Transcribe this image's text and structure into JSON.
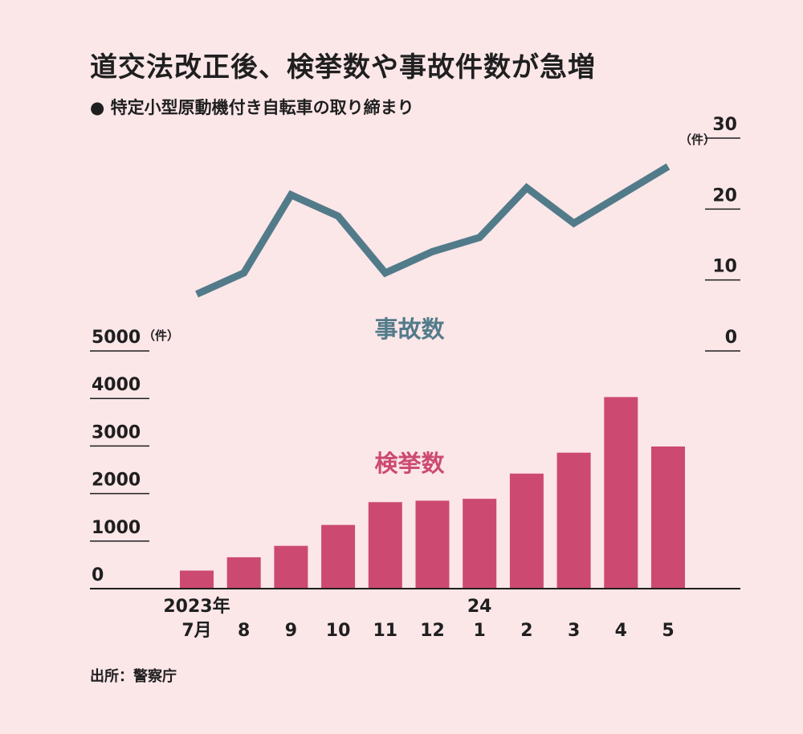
{
  "title": "道交法改正後、検挙数や事故件数が急増",
  "subtitle": "● 特定小型原動機付き自転車の取り締まり",
  "source": "出所：警察庁",
  "colors": {
    "background": "#fbe6e8",
    "accidents_line": "#527b8a",
    "enforcement_bars": "#cc4a72"
  },
  "chart_data": {
    "type": "bar+line",
    "categories": [
      "7月",
      "8",
      "9",
      "10",
      "11",
      "12",
      "1",
      "2",
      "3",
      "4",
      "5"
    ],
    "year_labels": [
      "2023年",
      "",
      "",
      "",
      "",
      "",
      "24",
      "",
      "",
      "",
      ""
    ],
    "series": [
      {
        "name": "検挙数",
        "type": "bar",
        "axis": "left",
        "values": [
          380,
          660,
          900,
          1340,
          1820,
          1850,
          1890,
          2420,
          2860,
          4030,
          2990
        ]
      },
      {
        "name": "事故数",
        "type": "line",
        "axis": "right",
        "values": [
          8,
          11,
          22,
          19,
          11,
          14,
          16,
          23,
          18,
          22,
          26
        ]
      }
    ],
    "left_axis": {
      "unit": "（件）",
      "ticks": [
        0,
        1000,
        2000,
        3000,
        4000,
        5000
      ],
      "ylim": [
        0,
        5000
      ]
    },
    "right_axis": {
      "unit": "（件）",
      "ticks": [
        0,
        10,
        20,
        30
      ],
      "ylim": [
        0,
        30
      ]
    }
  }
}
